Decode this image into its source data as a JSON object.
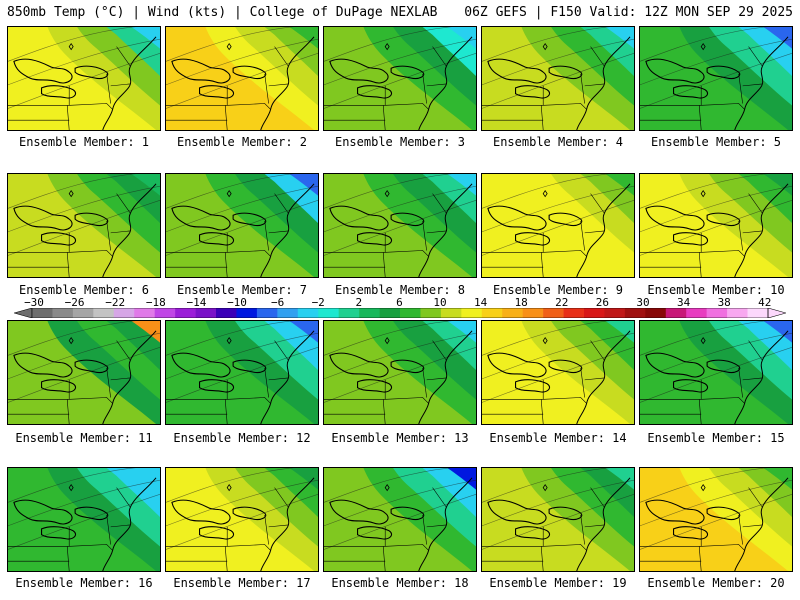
{
  "header": {
    "left": "850mb Temp (°C) | Wind (kts) | College of DuPage NEXLAB",
    "right": "06Z GEFS | F150 Valid: 12Z MON SEP 29 2025"
  },
  "colorbar": {
    "ticks": [
      "−30",
      "−26",
      "−22",
      "−18",
      "−14",
      "−10",
      "−6",
      "−2",
      "2",
      "6",
      "10",
      "14",
      "18",
      "22",
      "26",
      "30",
      "34",
      "38",
      "42"
    ],
    "colors": [
      "#6e6e6e",
      "#8a8a8a",
      "#a5a5a5",
      "#c3c3c3",
      "#d6a6e6",
      "#e07ae8",
      "#c046e6",
      "#9b1ed8",
      "#7a12c8",
      "#3a00b8",
      "#0018e0",
      "#2a66ee",
      "#32a0f0",
      "#28d0f0",
      "#1ee8d0",
      "#20d090",
      "#18b85c",
      "#18a040",
      "#30b830",
      "#80c820",
      "#c8dc20",
      "#f0f020",
      "#f8d018",
      "#f8b018",
      "#f89018",
      "#f06018",
      "#e83018",
      "#d81818",
      "#c01818",
      "#a01010",
      "#880808",
      "#c81878",
      "#e83cc0",
      "#f070e0",
      "#f8a8f0",
      "#fcd8fc"
    ]
  },
  "members": [
    {
      "label": "Ensemble Member: 1",
      "shades": [
        "#f8d018",
        "#f0f020",
        "#c8dc20",
        "#80c820",
        "#20d090",
        "#28d0f0"
      ]
    },
    {
      "label": "Ensemble Member: 2",
      "shades": [
        "#f8b018",
        "#f8d018",
        "#f0f020",
        "#c8dc20",
        "#80c820",
        "#30b830"
      ]
    },
    {
      "label": "Ensemble Member: 3",
      "shades": [
        "#c8dc20",
        "#80c820",
        "#30b830",
        "#18a040",
        "#1ee8d0",
        "#28d0f0"
      ]
    },
    {
      "label": "Ensemble Member: 4",
      "shades": [
        "#f0f020",
        "#c8dc20",
        "#80c820",
        "#30b830",
        "#20d090",
        "#28d0f0"
      ]
    },
    {
      "label": "Ensemble Member: 5",
      "shades": [
        "#80c820",
        "#30b830",
        "#18a040",
        "#20d090",
        "#28d0f0",
        "#2a66ee"
      ]
    },
    {
      "label": "Ensemble Member: 6",
      "shades": [
        "#f0f020",
        "#c8dc20",
        "#80c820",
        "#30b830",
        "#18a040",
        "#18b85c"
      ]
    },
    {
      "label": "Ensemble Member: 7",
      "shades": [
        "#c8dc20",
        "#80c820",
        "#30b830",
        "#18a040",
        "#28d0f0",
        "#2a66ee"
      ]
    },
    {
      "label": "Ensemble Member: 8",
      "shades": [
        "#c8dc20",
        "#80c820",
        "#30b830",
        "#18a040",
        "#20d090",
        "#28d0f0"
      ]
    },
    {
      "label": "Ensemble Member: 9",
      "shades": [
        "#f8d018",
        "#f0f020",
        "#f0f020",
        "#c8dc20",
        "#80c820",
        "#30b830"
      ]
    },
    {
      "label": "Ensemble Member: 10",
      "shades": [
        "#f8d018",
        "#f0f020",
        "#c8dc20",
        "#80c820",
        "#30b830",
        "#18a040"
      ]
    },
    {
      "label": "Ensemble Member: 11",
      "shades": [
        "#30b830",
        "#80c820",
        "#18a040",
        "#30b830",
        "#18a040",
        "#f89018"
      ]
    },
    {
      "label": "Ensemble Member: 12",
      "shades": [
        "#80c820",
        "#30b830",
        "#18a040",
        "#20d090",
        "#28d0f0",
        "#2a66ee"
      ]
    },
    {
      "label": "Ensemble Member: 13",
      "shades": [
        "#c8dc20",
        "#80c820",
        "#30b830",
        "#18a040",
        "#20d090",
        "#28d0f0"
      ]
    },
    {
      "label": "Ensemble Member: 14",
      "shades": [
        "#f8d018",
        "#f0f020",
        "#c8dc20",
        "#80c820",
        "#30b830",
        "#20d090"
      ]
    },
    {
      "label": "Ensemble Member: 15",
      "shades": [
        "#80c820",
        "#30b830",
        "#18a040",
        "#20d090",
        "#28d0f0",
        "#2a66ee"
      ]
    },
    {
      "label": "Ensemble Member: 16",
      "shades": [
        "#80c820",
        "#30b830",
        "#18a040",
        "#20d090",
        "#28d0f0",
        "#28d0f0"
      ]
    },
    {
      "label": "Ensemble Member: 17",
      "shades": [
        "#f8d018",
        "#f0f020",
        "#c8dc20",
        "#80c820",
        "#30b830",
        "#18a040"
      ]
    },
    {
      "label": "Ensemble Member: 18",
      "shades": [
        "#c8dc20",
        "#80c820",
        "#30b830",
        "#20d090",
        "#28d0f0",
        "#0018e0"
      ]
    },
    {
      "label": "Ensemble Member: 19",
      "shades": [
        "#f0f020",
        "#c8dc20",
        "#80c820",
        "#30b830",
        "#18a040",
        "#20d090"
      ]
    },
    {
      "label": "Ensemble Member: 20",
      "shades": [
        "#f8b018",
        "#f8d018",
        "#f0f020",
        "#c8dc20",
        "#80c820",
        "#30b830"
      ]
    }
  ]
}
